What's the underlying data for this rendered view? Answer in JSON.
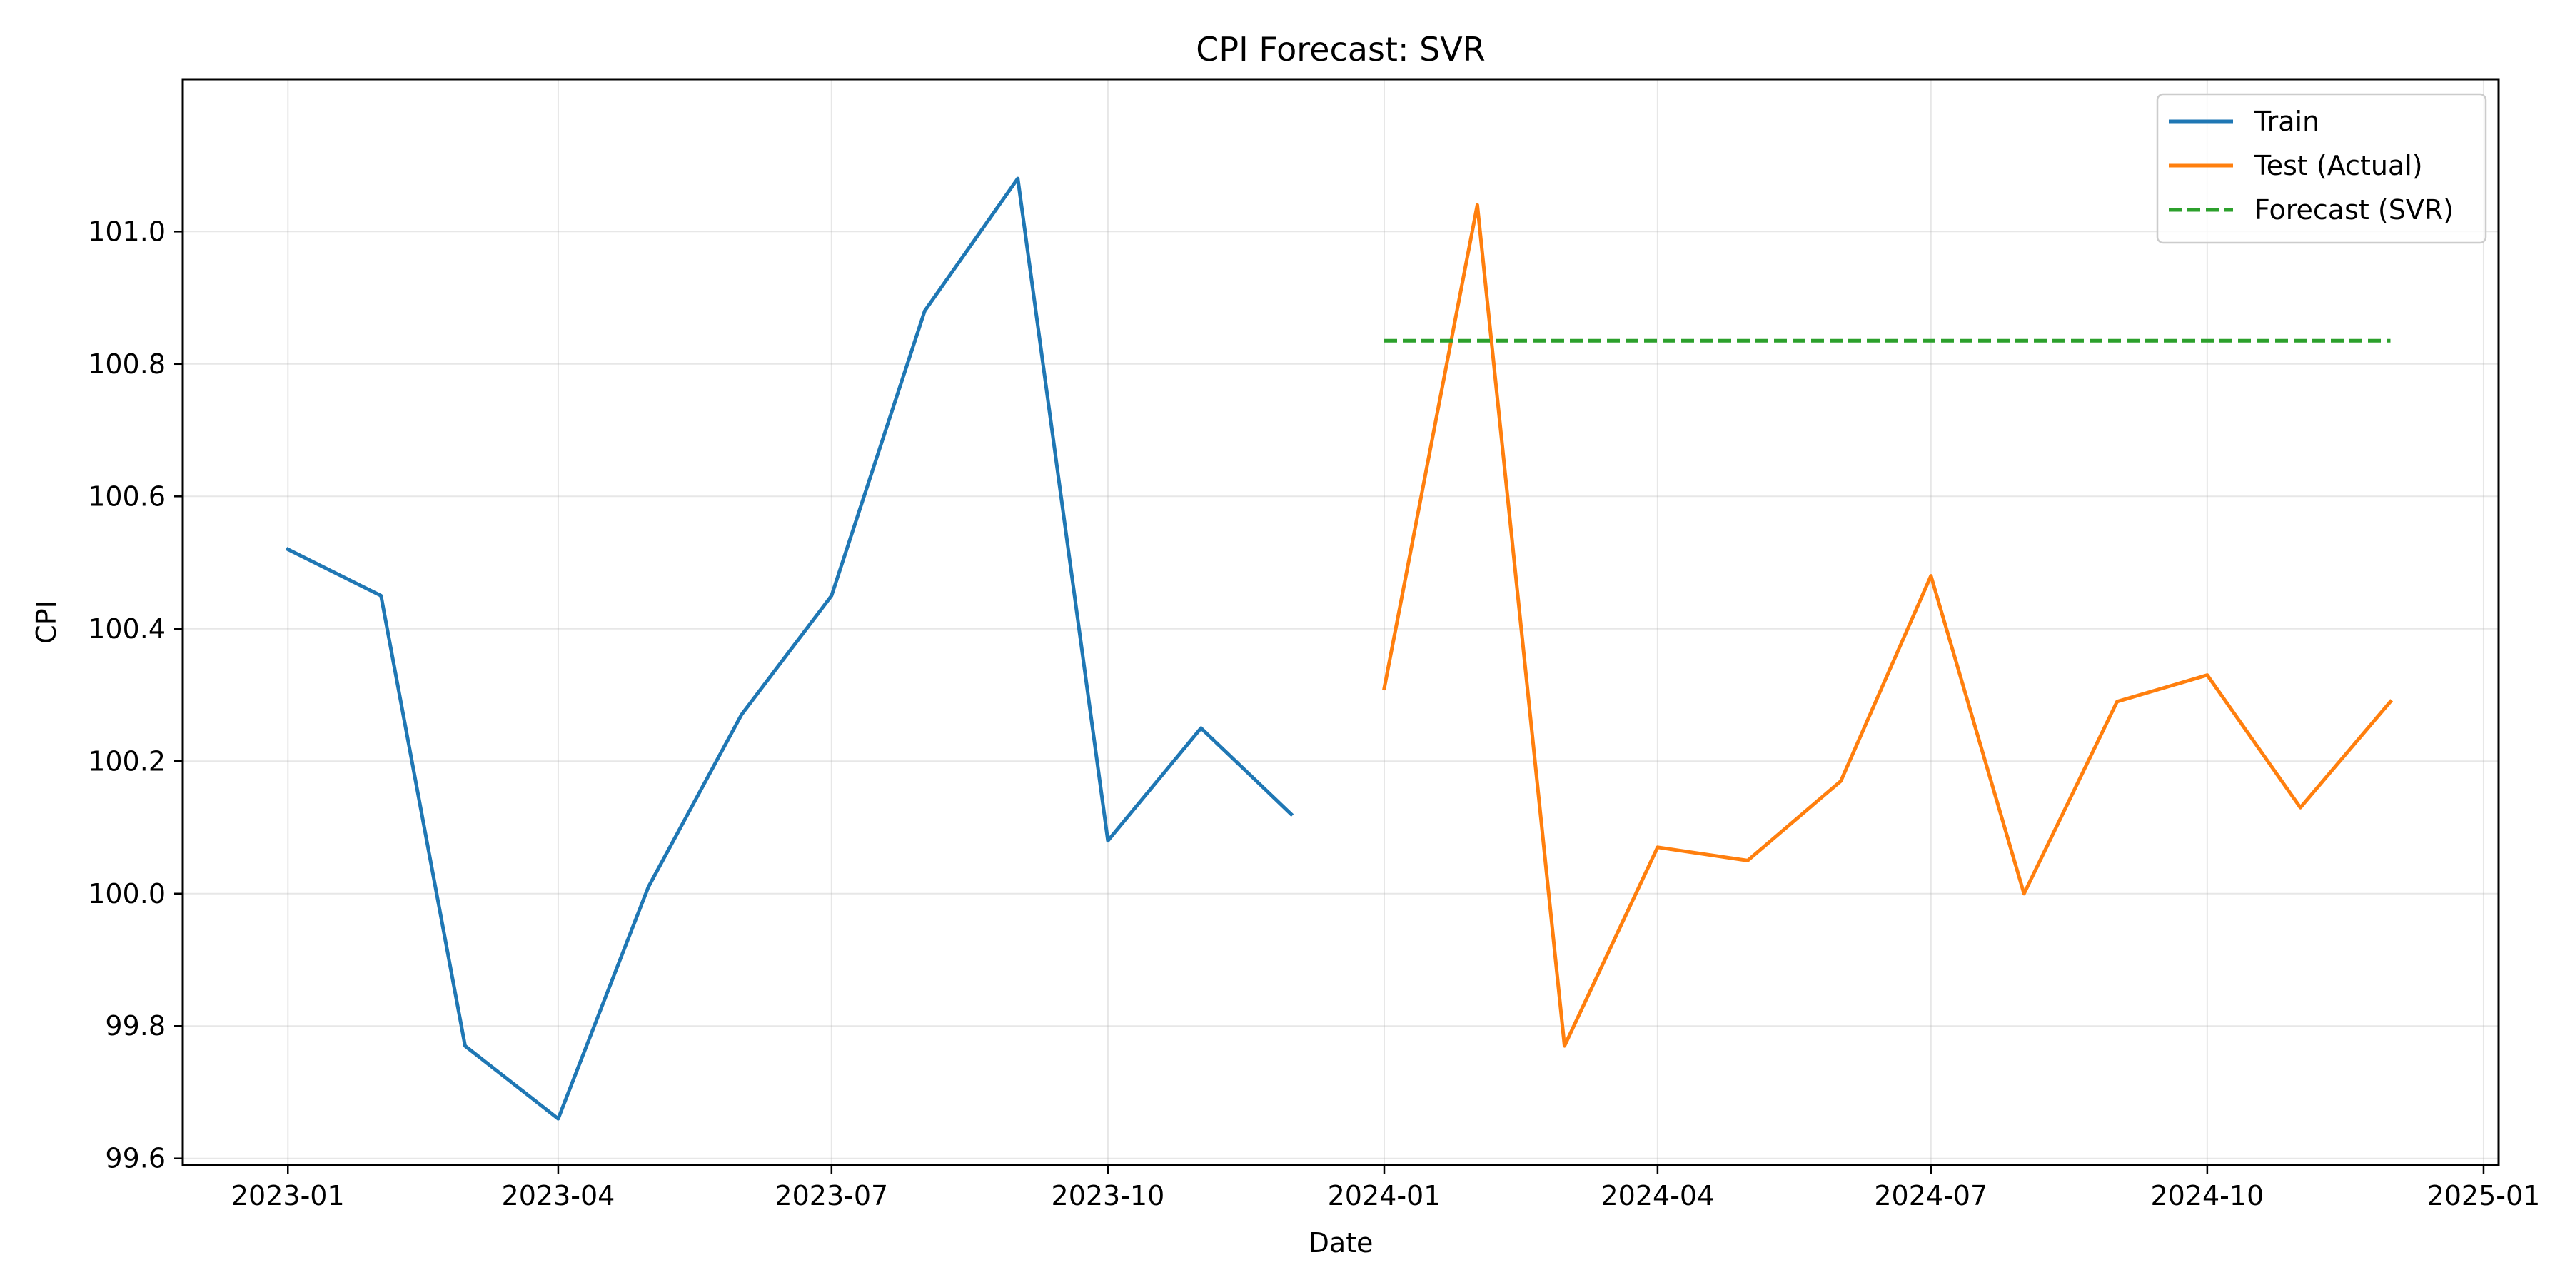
{
  "chart_data": {
    "type": "line",
    "title": "CPI Forecast: SVR",
    "xlabel": "Date",
    "ylabel": "CPI",
    "grid": true,
    "legend_position": "top-right",
    "xlim": [
      "2022-11-27",
      "2025-01-06"
    ],
    "ylim": [
      99.59,
      101.23
    ],
    "x_ticks": [
      "2023-01",
      "2023-04",
      "2023-07",
      "2023-10",
      "2024-01",
      "2024-04",
      "2024-07",
      "2024-10",
      "2025-01"
    ],
    "y_ticks": [
      99.6,
      99.8,
      100.0,
      100.2,
      100.4,
      100.6,
      100.8,
      101.0
    ],
    "y_tick_labels": [
      "99.6",
      "99.8",
      "100.0",
      "100.2",
      "100.4",
      "100.6",
      "100.8",
      "101.0"
    ],
    "series": [
      {
        "name": "Train",
        "color": "#1f77b4",
        "style": "solid",
        "x": [
          "2023-01",
          "2023-02",
          "2023-03",
          "2023-04",
          "2023-05",
          "2023-06",
          "2023-07",
          "2023-08",
          "2023-09",
          "2023-10",
          "2023-11",
          "2023-12"
        ],
        "values": [
          100.52,
          100.45,
          99.77,
          99.66,
          100.01,
          100.27,
          100.45,
          100.88,
          101.08,
          100.08,
          100.25,
          100.12
        ]
      },
      {
        "name": "Test (Actual)",
        "color": "#ff7f0e",
        "style": "solid",
        "x": [
          "2024-01",
          "2024-02",
          "2024-03",
          "2024-04",
          "2024-05",
          "2024-06",
          "2024-07",
          "2024-08",
          "2024-09",
          "2024-10",
          "2024-11",
          "2024-12"
        ],
        "values": [
          100.31,
          101.04,
          99.77,
          100.07,
          100.05,
          100.17,
          100.48,
          100.0,
          100.29,
          100.33,
          100.13,
          100.29
        ]
      },
      {
        "name": "Forecast (SVR)",
        "color": "#2ca02c",
        "style": "dashed",
        "x": [
          "2024-01",
          "2024-02",
          "2024-03",
          "2024-04",
          "2024-05",
          "2024-06",
          "2024-07",
          "2024-08",
          "2024-09",
          "2024-10",
          "2024-11",
          "2024-12"
        ],
        "values": [
          100.835,
          100.835,
          100.835,
          100.835,
          100.835,
          100.835,
          100.835,
          100.835,
          100.835,
          100.835,
          100.835,
          100.835
        ]
      }
    ]
  }
}
